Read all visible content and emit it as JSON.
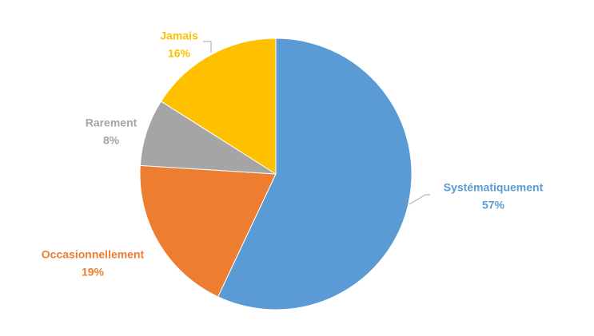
{
  "chart_data": {
    "type": "pie",
    "categories": [
      "Systématiquement",
      "Occasionnellement",
      "Rarement",
      "Jamais"
    ],
    "values": [
      57,
      19,
      8,
      16
    ],
    "value_labels": [
      "57%",
      "19%",
      "8%",
      "16%"
    ],
    "colors": [
      "#5b9bd5",
      "#ed7d31",
      "#a5a5a5",
      "#ffc000"
    ]
  }
}
